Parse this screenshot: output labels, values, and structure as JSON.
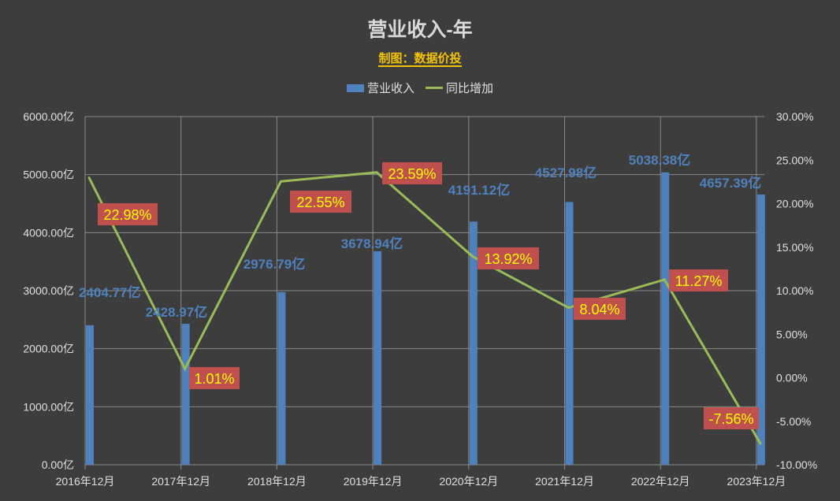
{
  "chart_data": {
    "type": "bar+line",
    "title": "营业收入-年",
    "subtitle": "制图：数据价投",
    "categories": [
      "2016年12月",
      "2017年12月",
      "2018年12月",
      "2019年12月",
      "2020年12月",
      "2021年12月",
      "2022年12月",
      "2023年12月"
    ],
    "series": [
      {
        "name": "营业收入",
        "type": "bar",
        "axis": "left",
        "values": [
          2404.77,
          2428.97,
          2976.79,
          3678.94,
          4191.12,
          4527.98,
          5038.38,
          4657.39
        ],
        "labels": [
          "2404.77亿",
          "2428.97亿",
          "2976.79亿",
          "3678.94亿",
          "4191.12亿",
          "4527.98亿",
          "5038.38亿",
          "4657.39亿"
        ],
        "color": "#4f81bd"
      },
      {
        "name": "同比增加",
        "type": "line",
        "axis": "right",
        "values": [
          22.98,
          1.01,
          22.55,
          23.59,
          13.92,
          8.04,
          11.27,
          -7.56
        ],
        "labels": [
          "22.98%",
          "1.01%",
          "22.55%",
          "23.59%",
          "13.92%",
          "8.04%",
          "11.27%",
          "-7.56%"
        ],
        "color": "#9bbb59"
      }
    ],
    "y_left": {
      "range": [
        0,
        6000
      ],
      "ticks": [
        "0.00亿",
        "1000.00亿",
        "2000.00亿",
        "3000.00亿",
        "4000.00亿",
        "5000.00亿",
        "6000.00亿"
      ]
    },
    "y_right": {
      "range": [
        -10,
        30
      ],
      "ticks": [
        "-10.00%",
        "-5.00%",
        "0.00%",
        "5.00%",
        "10.00%",
        "15.00%",
        "20.00%",
        "25.00%",
        "30.00%"
      ]
    },
    "grid": true,
    "legend": "top",
    "colors": {
      "background": "#3d3d3d",
      "bar_label": "#4f81bd",
      "pct_label_bg": "#c0504d",
      "pct_label_text": "#ffff00"
    }
  }
}
